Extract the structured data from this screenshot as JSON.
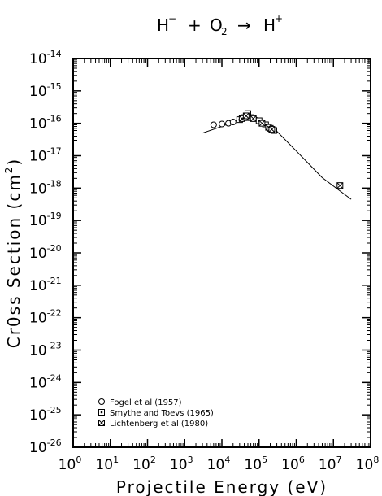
{
  "title": {
    "lhs": "H",
    "lhs_charge": "−",
    "plus": "+",
    "target": "O",
    "target_sub": "2",
    "arrow": "→",
    "product": "H",
    "product_charge": "+"
  },
  "axes": {
    "xlabel": "Projectile Energy (eV)",
    "ylabel_prefix": "Cr0ss Section (cm",
    "ylabel_exp": "2",
    "ylabel_suffix": ")"
  },
  "chart_data": {
    "type": "scatter",
    "xscale": "log",
    "yscale": "log",
    "xlim": [
      1,
      100000000
    ],
    "ylim": [
      1e-26,
      1e-14
    ],
    "x_ticks": [
      {
        "base": "10",
        "exp": "0",
        "value": 1
      },
      {
        "base": "10",
        "exp": "1",
        "value": 10
      },
      {
        "base": "10",
        "exp": "2",
        "value": 100
      },
      {
        "base": "10",
        "exp": "3",
        "value": 1000
      },
      {
        "base": "10",
        "exp": "4",
        "value": 10000
      },
      {
        "base": "10",
        "exp": "5",
        "value": 100000
      },
      {
        "base": "10",
        "exp": "6",
        "value": 1000000
      },
      {
        "base": "10",
        "exp": "7",
        "value": 10000000
      },
      {
        "base": "10",
        "exp": "8",
        "value": 100000000
      }
    ],
    "y_ticks": [
      {
        "base": "10",
        "exp": "-14",
        "value": 1e-14
      },
      {
        "base": "10",
        "exp": "-15",
        "value": 1e-15
      },
      {
        "base": "10",
        "exp": "-16",
        "value": 1e-16
      },
      {
        "base": "10",
        "exp": "-17",
        "value": 1e-17
      },
      {
        "base": "10",
        "exp": "-18",
        "value": 1e-18
      },
      {
        "base": "10",
        "exp": "-19",
        "value": 1e-19
      },
      {
        "base": "10",
        "exp": "-20",
        "value": 1e-20
      },
      {
        "base": "10",
        "exp": "-21",
        "value": 1e-21
      },
      {
        "base": "10",
        "exp": "-22",
        "value": 1e-22
      },
      {
        "base": "10",
        "exp": "-23",
        "value": 1e-23
      },
      {
        "base": "10",
        "exp": "-24",
        "value": 1e-24
      },
      {
        "base": "10",
        "exp": "-25",
        "value": 1e-25
      },
      {
        "base": "10",
        "exp": "-26",
        "value": 1e-26
      }
    ],
    "fit_curve": {
      "x": [
        3000,
        10000,
        20000,
        40000,
        50000,
        80000,
        150000,
        250000,
        1000000,
        5000000,
        30000000
      ],
      "y": [
        5e-17,
        8e-17,
        1.1e-16,
        1.6e-16,
        1.85e-16,
        1.6e-16,
        1.05e-16,
        7e-17,
        1.4e-17,
        2.1e-18,
        4.5e-19
      ]
    },
    "series": [
      {
        "name": "Fogel et al (1957)",
        "marker": "circle",
        "points": [
          [
            6000,
            9e-17
          ],
          [
            10000,
            9.5e-17
          ],
          [
            15000,
            1e-16
          ],
          [
            20000,
            1.1e-16
          ]
        ]
      },
      {
        "name": "Smythe and Toevs (1965)",
        "marker": "square",
        "points": [
          [
            30000,
            1.3e-16
          ],
          [
            40000,
            1.5e-16
          ],
          [
            50000,
            2e-16
          ],
          [
            60000,
            1.5e-16
          ],
          [
            100000,
            1.2e-16
          ],
          [
            150000,
            9e-17
          ],
          [
            200000,
            7e-17
          ],
          [
            250000,
            6e-17
          ]
        ]
      },
      {
        "name": "Lichtenberg et al (1980)",
        "marker": "crossed-square",
        "points": [
          [
            35000,
            1.4e-16
          ],
          [
            45000,
            1.7e-16
          ],
          [
            70000,
            1.4e-16
          ],
          [
            120000,
            1e-16
          ],
          [
            180000,
            7.5e-17
          ],
          [
            220000,
            6.5e-17
          ],
          [
            15000000,
            1.2e-18
          ]
        ]
      }
    ],
    "legend": {
      "entries": [
        {
          "marker": "circle",
          "label": "Fogel et al (1957)"
        },
        {
          "marker": "square",
          "label": "Smythe and Toevs (1965)"
        },
        {
          "marker": "crossed-square",
          "label": "Lichtenberg et al (1980)"
        }
      ]
    },
    "grid": false,
    "minor_ticks": true
  }
}
